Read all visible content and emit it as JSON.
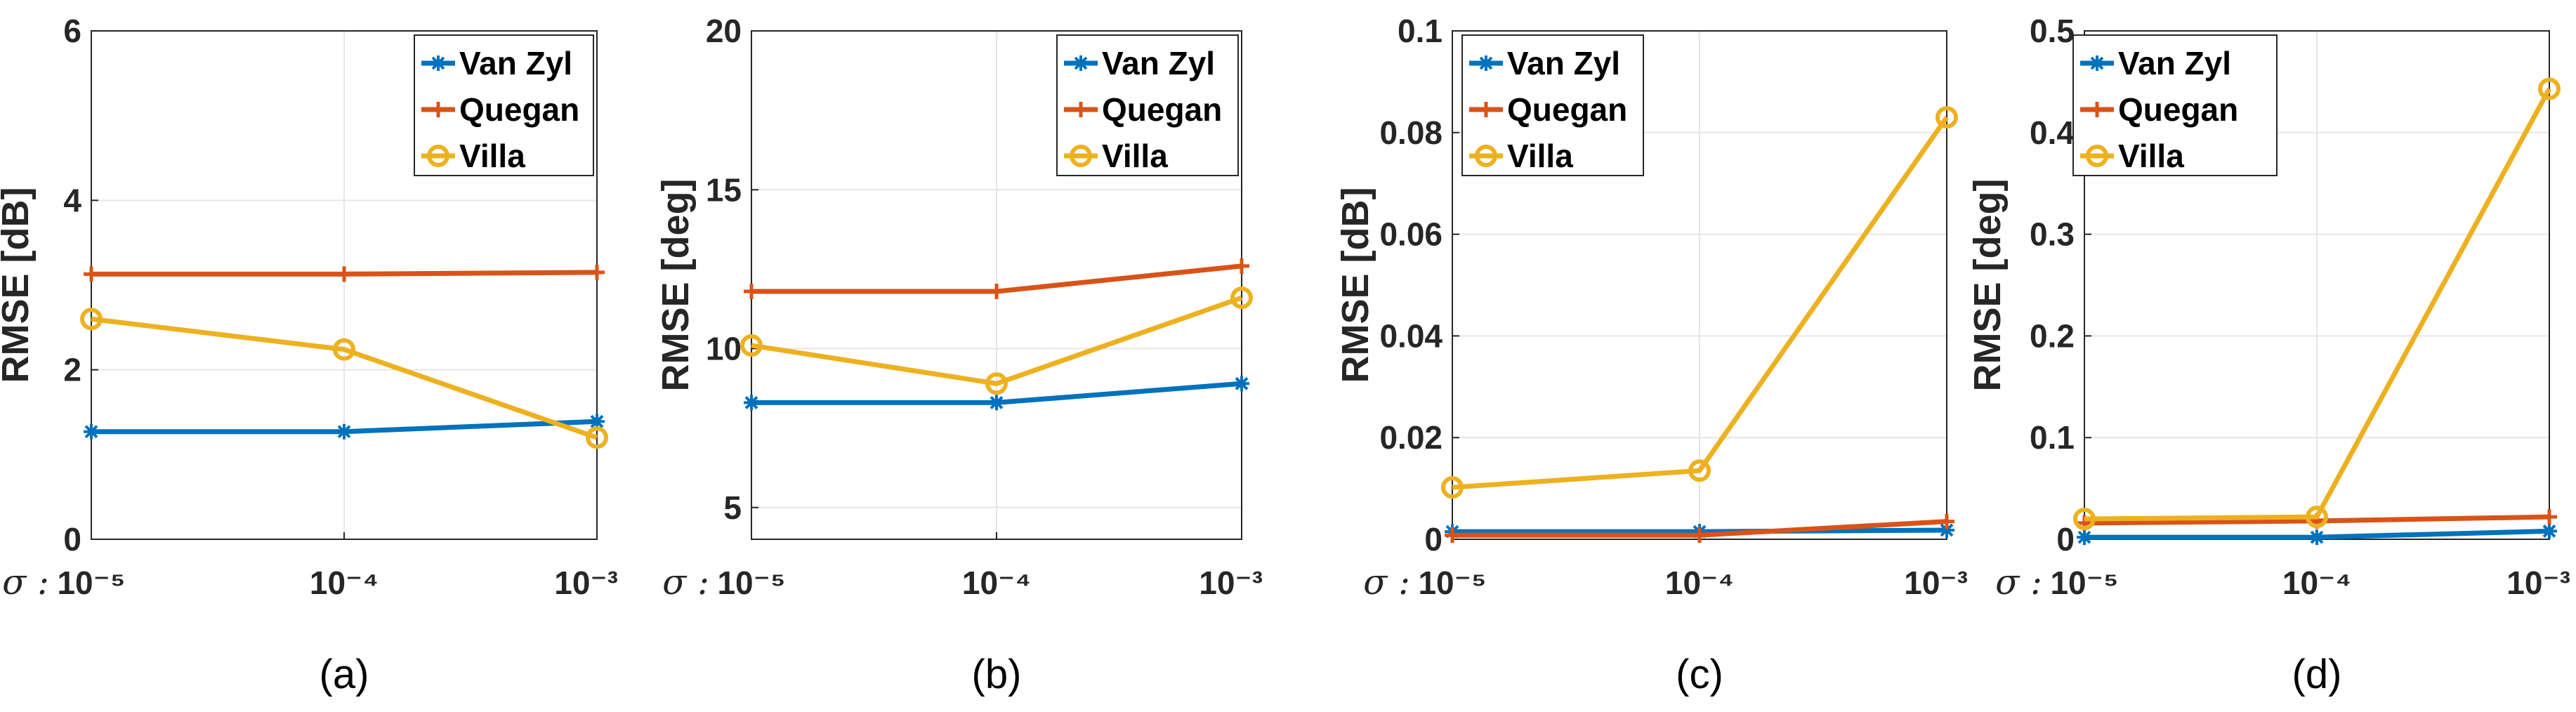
{
  "colors": {
    "van_zyl": "#0072BD",
    "quegan": "#D95319",
    "villa": "#EDB120"
  },
  "sigma_prefix": "σ :",
  "chart_data": [
    {
      "type": "line",
      "caption": "(a)",
      "ylabel": "RMSE [dB]",
      "xlabel": "σ",
      "x_ticks": [
        "10⁻⁵",
        "10⁻⁴",
        "10⁻³"
      ],
      "y_ticks": [
        "0",
        "2",
        "4",
        "6"
      ],
      "ylim": [
        0,
        6
      ],
      "grid": true,
      "legend_position": "top-right",
      "series": [
        {
          "name": "Van Zyl",
          "color_key": "van_zyl",
          "marker": "star",
          "values": [
            1.27,
            1.27,
            1.39
          ]
        },
        {
          "name": "Quegan",
          "color_key": "quegan",
          "marker": "plus",
          "values": [
            3.13,
            3.13,
            3.15
          ]
        },
        {
          "name": "Villa",
          "color_key": "villa",
          "marker": "circle",
          "values": [
            2.6,
            2.24,
            1.2
          ]
        }
      ]
    },
    {
      "type": "line",
      "caption": "(b)",
      "ylabel": "RMSE [deg]",
      "xlabel": "σ",
      "x_ticks": [
        "10⁻⁵",
        "10⁻⁴",
        "10⁻³"
      ],
      "y_ticks": [
        "5",
        "10",
        "15",
        "20"
      ],
      "ylim": [
        4,
        20
      ],
      "grid": true,
      "legend_position": "top-right",
      "series": [
        {
          "name": "Van Zyl",
          "color_key": "van_zyl",
          "marker": "star",
          "values": [
            8.3,
            8.3,
            8.9
          ]
        },
        {
          "name": "Quegan",
          "color_key": "quegan",
          "marker": "plus",
          "values": [
            11.8,
            11.8,
            12.6
          ]
        },
        {
          "name": "Villa",
          "color_key": "villa",
          "marker": "circle",
          "values": [
            10.1,
            8.9,
            11.6
          ]
        }
      ]
    },
    {
      "type": "line",
      "caption": "(c)",
      "ylabel": "RMSE [dB]",
      "xlabel": "σ",
      "x_ticks": [
        "10⁻⁵",
        "10⁻⁴",
        "10⁻³"
      ],
      "y_ticks": [
        "0",
        "0.02",
        "0.04",
        "0.06",
        "0.08",
        "0.1"
      ],
      "ylim": [
        0,
        0.1
      ],
      "grid": true,
      "legend_position": "top-left",
      "series": [
        {
          "name": "Van Zyl",
          "color_key": "van_zyl",
          "marker": "star",
          "values": [
            0.0015,
            0.0015,
            0.0018
          ]
        },
        {
          "name": "Quegan",
          "color_key": "quegan",
          "marker": "plus",
          "values": [
            0.0008,
            0.0008,
            0.0035
          ]
        },
        {
          "name": "Villa",
          "color_key": "villa",
          "marker": "circle",
          "values": [
            0.0102,
            0.0135,
            0.083
          ]
        }
      ]
    },
    {
      "type": "line",
      "caption": "(d)",
      "ylabel": "RMSE [deg]",
      "xlabel": "σ",
      "x_ticks": [
        "10⁻⁵",
        "10⁻⁴",
        "10⁻³"
      ],
      "y_ticks": [
        "0",
        "0.1",
        "0.2",
        "0.3",
        "0.4",
        "0.5"
      ],
      "ylim": [
        0,
        0.5
      ],
      "grid": true,
      "legend_position": "top-left",
      "series": [
        {
          "name": "Van Zyl",
          "color_key": "van_zyl",
          "marker": "star",
          "values": [
            0.002,
            0.002,
            0.008
          ]
        },
        {
          "name": "Quegan",
          "color_key": "quegan",
          "marker": "plus",
          "values": [
            0.016,
            0.018,
            0.022
          ]
        },
        {
          "name": "Villa",
          "color_key": "villa",
          "marker": "circle",
          "values": [
            0.02,
            0.022,
            0.443
          ]
        }
      ]
    }
  ]
}
